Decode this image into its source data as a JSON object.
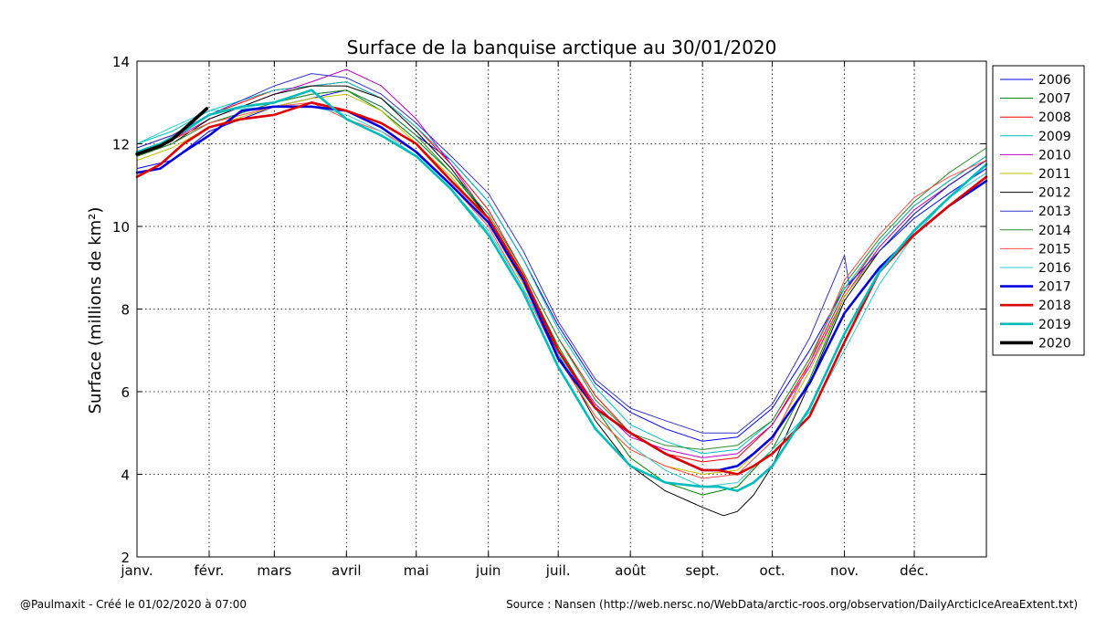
{
  "chart_data": {
    "type": "line",
    "title": "Surface de la banquise arctique au 30/01/2020",
    "xlabel": "",
    "ylabel": "Surface (millions de km²)",
    "xlim": [
      0,
      365
    ],
    "ylim": [
      2,
      14
    ],
    "yticks": [
      2,
      4,
      6,
      8,
      10,
      12,
      14
    ],
    "grid": true,
    "legend_position": "outside-right",
    "months": [
      {
        "label": "janv.",
        "day": 0
      },
      {
        "label": "févr.",
        "day": 31
      },
      {
        "label": "mars",
        "day": 59
      },
      {
        "label": "avril",
        "day": 90
      },
      {
        "label": "mai",
        "day": 120
      },
      {
        "label": "juin",
        "day": 151
      },
      {
        "label": "juil.",
        "day": 181
      },
      {
        "label": "août",
        "day": 212
      },
      {
        "label": "sept.",
        "day": 243
      },
      {
        "label": "oct.",
        "day": 273
      },
      {
        "label": "nov.",
        "day": 304
      },
      {
        "label": "déc.",
        "day": 334
      }
    ],
    "series": [
      {
        "name": "2006",
        "color": "#0000ff",
        "weight": "thin",
        "x": [
          0,
          15,
          31,
          59,
          75,
          90,
          105,
          120,
          135,
          151,
          166,
          181,
          197,
          212,
          227,
          243,
          258,
          273,
          289,
          304,
          319,
          334,
          349,
          365
        ],
        "y": [
          11.4,
          11.6,
          12.3,
          12.9,
          13.1,
          13.3,
          12.9,
          12.2,
          11.6,
          10.6,
          9.2,
          7.6,
          6.2,
          5.5,
          5.1,
          4.8,
          4.9,
          5.6,
          7.0,
          8.5,
          9.4,
          10.2,
          10.8,
          11.4
        ]
      },
      {
        "name": "2007",
        "color": "#008000",
        "weight": "thin",
        "x": [
          0,
          15,
          31,
          59,
          75,
          90,
          105,
          120,
          135,
          151,
          166,
          181,
          197,
          212,
          227,
          243,
          258,
          273,
          289,
          304,
          319,
          334,
          349,
          365
        ],
        "y": [
          11.8,
          12.1,
          12.5,
          13.0,
          13.2,
          13.3,
          12.8,
          12.1,
          11.3,
          10.2,
          8.8,
          7.1,
          5.6,
          4.4,
          3.8,
          3.5,
          3.7,
          4.6,
          6.3,
          8.3,
          9.4,
          10.3,
          11.0,
          11.6
        ]
      },
      {
        "name": "2008",
        "color": "#ff0000",
        "weight": "thin",
        "x": [
          0,
          15,
          31,
          59,
          75,
          90,
          105,
          120,
          135,
          151,
          166,
          181,
          197,
          212,
          227,
          243,
          258,
          273,
          289,
          304,
          319,
          334,
          349,
          365
        ],
        "y": [
          11.9,
          12.2,
          12.7,
          13.3,
          13.4,
          13.5,
          13.1,
          12.4,
          11.5,
          10.4,
          8.9,
          7.3,
          5.9,
          5.0,
          4.5,
          4.3,
          4.4,
          5.2,
          6.7,
          8.4,
          9.6,
          10.5,
          11.1,
          11.7
        ]
      },
      {
        "name": "2009",
        "color": "#00bfbf",
        "weight": "thin",
        "x": [
          0,
          15,
          31,
          59,
          75,
          90,
          105,
          120,
          135,
          151,
          166,
          181,
          197,
          212,
          227,
          243,
          258,
          273,
          289,
          304,
          319,
          334,
          349,
          365
        ],
        "y": [
          12.0,
          12.3,
          12.8,
          13.3,
          13.4,
          13.5,
          13.1,
          12.4,
          11.6,
          10.6,
          9.2,
          7.5,
          6.1,
          5.2,
          4.8,
          4.5,
          4.6,
          5.3,
          6.8,
          8.5,
          9.6,
          10.5,
          11.1,
          11.7
        ]
      },
      {
        "name": "2010",
        "color": "#bf00bf",
        "weight": "thin",
        "x": [
          0,
          15,
          31,
          59,
          75,
          90,
          105,
          120,
          135,
          151,
          166,
          181,
          197,
          212,
          227,
          243,
          258,
          273,
          289,
          304,
          319,
          334,
          349,
          365
        ],
        "y": [
          11.8,
          12.1,
          12.6,
          13.2,
          13.5,
          13.8,
          13.4,
          12.6,
          11.5,
          10.2,
          8.7,
          7.0,
          5.7,
          4.9,
          4.6,
          4.4,
          4.5,
          5.2,
          6.6,
          8.3,
          9.5,
          10.4,
          11.0,
          11.6
        ]
      },
      {
        "name": "2011",
        "color": "#bfbf00",
        "weight": "thin",
        "x": [
          0,
          15,
          31,
          59,
          75,
          90,
          105,
          120,
          135,
          151,
          166,
          181,
          197,
          212,
          227,
          243,
          258,
          273,
          289,
          304,
          319,
          334,
          349,
          365
        ],
        "y": [
          11.6,
          11.9,
          12.4,
          12.9,
          13.1,
          13.2,
          12.8,
          12.0,
          11.2,
          10.1,
          8.6,
          6.9,
          5.4,
          4.6,
          4.2,
          4.0,
          4.1,
          4.9,
          6.5,
          8.3,
          9.4,
          10.3,
          11.0,
          11.6
        ]
      },
      {
        "name": "2012",
        "color": "#000000",
        "weight": "thin",
        "x": [
          0,
          15,
          31,
          59,
          75,
          90,
          105,
          120,
          135,
          151,
          166,
          181,
          197,
          212,
          227,
          243,
          252,
          258,
          265,
          273,
          289,
          304,
          319,
          334,
          349,
          365
        ],
        "y": [
          11.7,
          12.0,
          12.6,
          13.2,
          13.4,
          13.4,
          13.1,
          12.3,
          11.4,
          10.2,
          8.7,
          6.9,
          5.3,
          4.2,
          3.6,
          3.2,
          3.0,
          3.1,
          3.5,
          4.2,
          6.2,
          8.2,
          9.4,
          10.3,
          11.0,
          11.6
        ]
      },
      {
        "name": "2013",
        "color": "#3333cc",
        "weight": "thin",
        "x": [
          0,
          15,
          31,
          59,
          75,
          90,
          105,
          120,
          135,
          151,
          166,
          181,
          197,
          212,
          227,
          243,
          258,
          273,
          289,
          304,
          306,
          319,
          334,
          349,
          365
        ],
        "y": [
          11.9,
          12.2,
          12.7,
          13.4,
          13.7,
          13.6,
          13.2,
          12.5,
          11.7,
          10.8,
          9.4,
          7.7,
          6.3,
          5.6,
          5.3,
          5.0,
          5.0,
          5.7,
          7.3,
          9.3,
          8.6,
          9.4,
          10.3,
          11.0,
          11.6
        ]
      },
      {
        "name": "2014",
        "color": "#2e8b2e",
        "weight": "thin",
        "x": [
          0,
          15,
          31,
          59,
          75,
          90,
          105,
          120,
          135,
          151,
          166,
          181,
          197,
          212,
          227,
          243,
          258,
          273,
          289,
          304,
          319,
          334,
          349,
          365
        ],
        "y": [
          11.7,
          12.0,
          12.5,
          13.0,
          13.2,
          13.3,
          12.9,
          12.2,
          11.3,
          10.3,
          8.9,
          7.3,
          5.8,
          5.0,
          4.7,
          4.6,
          4.7,
          5.3,
          6.8,
          8.6,
          9.7,
          10.6,
          11.3,
          11.9
        ]
      },
      {
        "name": "2015",
        "color": "#ff4d4d",
        "weight": "thin",
        "x": [
          0,
          15,
          31,
          59,
          75,
          90,
          105,
          120,
          135,
          151,
          166,
          181,
          197,
          212,
          227,
          243,
          258,
          273,
          289,
          304,
          319,
          334,
          349,
          365
        ],
        "y": [
          11.8,
          12.1,
          12.5,
          12.9,
          13.0,
          12.6,
          12.3,
          11.8,
          11.0,
          10.0,
          8.5,
          6.8,
          5.4,
          4.6,
          4.2,
          3.9,
          4.0,
          4.8,
          6.7,
          8.7,
          9.8,
          10.7,
          11.2,
          11.6
        ]
      },
      {
        "name": "2016",
        "color": "#33cccc",
        "weight": "thin",
        "x": [
          0,
          15,
          31,
          59,
          75,
          90,
          105,
          120,
          135,
          151,
          166,
          181,
          197,
          212,
          227,
          243,
          258,
          273,
          289,
          304,
          319,
          334,
          349,
          365
        ],
        "y": [
          12.0,
          12.4,
          12.8,
          12.9,
          12.9,
          12.7,
          12.3,
          11.7,
          10.9,
          9.9,
          8.5,
          6.9,
          5.6,
          4.7,
          4.1,
          3.7,
          3.8,
          4.6,
          5.5,
          7.0,
          8.6,
          9.8,
          10.7,
          11.3
        ]
      },
      {
        "name": "2017",
        "color": "#0000dd",
        "weight": "thick",
        "x": [
          0,
          10,
          20,
          31,
          45,
          59,
          75,
          90,
          105,
          120,
          135,
          151,
          166,
          181,
          197,
          212,
          227,
          243,
          250,
          258,
          265,
          273,
          289,
          304,
          319,
          334,
          349,
          365
        ],
        "y": [
          11.3,
          11.4,
          11.8,
          12.2,
          12.8,
          12.9,
          12.9,
          12.8,
          12.4,
          11.8,
          11.0,
          10.1,
          8.7,
          6.8,
          5.6,
          5.0,
          4.5,
          4.1,
          4.1,
          4.2,
          4.5,
          4.9,
          6.2,
          7.9,
          9.0,
          9.8,
          10.5,
          11.1
        ]
      },
      {
        "name": "2018",
        "color": "#dd0000",
        "weight": "thick",
        "x": [
          0,
          10,
          20,
          31,
          45,
          59,
          75,
          90,
          105,
          120,
          135,
          151,
          166,
          181,
          197,
          212,
          227,
          243,
          250,
          258,
          265,
          273,
          289,
          304,
          319,
          334,
          349,
          365
        ],
        "y": [
          11.2,
          11.5,
          12.0,
          12.4,
          12.6,
          12.7,
          13.0,
          12.8,
          12.5,
          12.0,
          11.1,
          10.2,
          8.8,
          7.0,
          5.6,
          5.0,
          4.5,
          4.1,
          4.1,
          4.0,
          4.2,
          4.5,
          5.4,
          7.2,
          8.9,
          9.8,
          10.5,
          11.2
        ]
      },
      {
        "name": "2019",
        "color": "#00bbbb",
        "weight": "thick",
        "x": [
          0,
          10,
          20,
          31,
          45,
          59,
          75,
          90,
          105,
          120,
          135,
          151,
          166,
          181,
          197,
          212,
          227,
          243,
          250,
          258,
          265,
          273,
          289,
          304,
          319,
          334,
          349,
          365
        ],
        "y": [
          11.8,
          12.0,
          12.3,
          12.7,
          12.9,
          13.0,
          13.3,
          12.6,
          12.2,
          11.7,
          10.9,
          9.8,
          8.4,
          6.6,
          5.1,
          4.2,
          3.8,
          3.7,
          3.7,
          3.6,
          3.8,
          4.2,
          5.6,
          7.4,
          8.9,
          9.9,
          10.7,
          11.5
        ]
      },
      {
        "name": "2020",
        "color": "#000000",
        "weight": "thicker",
        "x": [
          0,
          5,
          10,
          15,
          20,
          25,
          30
        ],
        "y": [
          11.75,
          11.85,
          11.95,
          12.1,
          12.35,
          12.6,
          12.85
        ]
      }
    ]
  },
  "footer": {
    "credit": "@Paulmaxit - Créé le 01/02/2020 à 07:00",
    "source": "Source : Nansen (http://web.nersc.no/WebData/arctic-roos.org/observation/DailyArcticIceAreaExtent.txt)"
  }
}
